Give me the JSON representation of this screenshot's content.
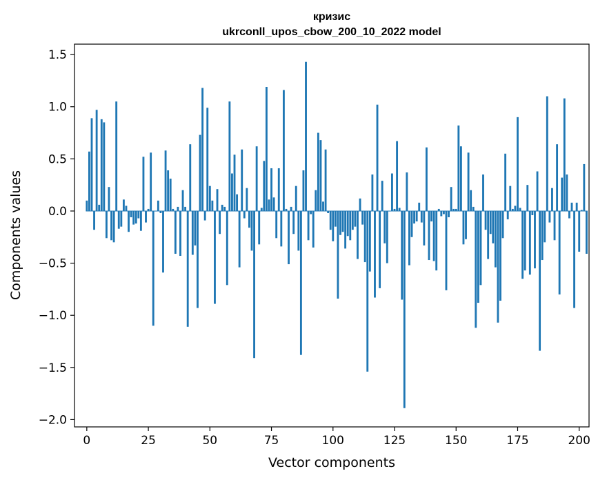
{
  "chart_data": {
    "type": "bar",
    "title": "кризис",
    "subtitle": "ukrconll_upos_cbow_200_10_2022 model",
    "xlabel": "Vector components",
    "ylabel": "Components values",
    "xlim": [
      -5,
      204
    ],
    "ylim": [
      -2.07,
      1.6
    ],
    "xticks": [
      0,
      25,
      50,
      75,
      100,
      125,
      150,
      175,
      200
    ],
    "xtick_labels": [
      "0",
      "25",
      "50",
      "75",
      "100",
      "125",
      "150",
      "175",
      "200"
    ],
    "yticks": [
      1.5,
      1.0,
      0.5,
      0.0,
      -0.5,
      -1.0,
      -1.5,
      -2.0
    ],
    "ytick_labels": [
      "1.5",
      "1.0",
      "0.5",
      "0.0",
      "−0.5",
      "−1.0",
      "−1.5",
      "−2.0"
    ],
    "grid": false,
    "bar_color": "#1f77b4",
    "values": [
      0.1,
      0.57,
      0.89,
      -0.18,
      0.97,
      0.06,
      0.88,
      0.85,
      -0.26,
      0.23,
      -0.28,
      -0.3,
      1.05,
      -0.17,
      -0.15,
      0.11,
      0.05,
      -0.2,
      -0.06,
      -0.13,
      -0.12,
      -0.07,
      -0.19,
      0.52,
      -0.11,
      0.02,
      0.56,
      -1.1,
      0.0,
      0.1,
      -0.02,
      -0.59,
      0.58,
      0.39,
      0.31,
      0.02,
      -0.41,
      0.04,
      -0.43,
      0.2,
      0.04,
      -1.11,
      0.64,
      -0.42,
      -0.33,
      -0.93,
      0.73,
      1.18,
      -0.09,
      0.99,
      0.24,
      0.1,
      -0.89,
      0.21,
      -0.22,
      0.06,
      0.04,
      -0.71,
      1.05,
      0.36,
      0.54,
      0.16,
      -0.54,
      0.59,
      -0.07,
      0.22,
      -0.16,
      -0.38,
      -1.41,
      0.62,
      -0.32,
      0.03,
      0.48,
      1.19,
      0.11,
      0.41,
      0.13,
      -0.26,
      0.41,
      -0.34,
      1.16,
      0.02,
      -0.51,
      0.04,
      -0.22,
      0.24,
      -0.38,
      -1.38,
      0.39,
      1.43,
      -0.28,
      -0.03,
      -0.35,
      0.2,
      0.75,
      0.68,
      0.09,
      0.59,
      -0.02,
      -0.18,
      -0.29,
      -0.15,
      -0.84,
      -0.23,
      -0.2,
      -0.36,
      -0.24,
      -0.28,
      -0.18,
      -0.15,
      -0.46,
      0.12,
      -0.13,
      -0.49,
      -1.54,
      -0.58,
      0.35,
      -0.83,
      1.02,
      -0.74,
      0.29,
      -0.31,
      -0.5,
      0.0,
      0.36,
      0.02,
      0.67,
      0.03,
      -0.85,
      -1.89,
      0.37,
      -0.52,
      -0.25,
      -0.12,
      -0.1,
      0.08,
      -0.11,
      -0.33,
      0.61,
      -0.47,
      -0.1,
      -0.48,
      -0.57,
      0.02,
      -0.05,
      -0.03,
      -0.76,
      -0.06,
      0.23,
      0.02,
      0.02,
      0.82,
      0.62,
      -0.32,
      -0.27,
      0.56,
      0.2,
      0.04,
      -1.12,
      -0.88,
      -0.71,
      0.35,
      -0.18,
      -0.46,
      -0.22,
      -0.31,
      -0.54,
      -1.07,
      -0.86,
      -0.26,
      0.55,
      -0.08,
      0.24,
      0.02,
      0.05,
      0.9,
      0.03,
      -0.65,
      -0.57,
      0.25,
      -0.61,
      -0.04,
      -0.55,
      0.38,
      -1.34,
      -0.47,
      -0.3,
      1.1,
      -0.11,
      0.22,
      -0.28,
      0.64,
      -0.8,
      0.32,
      1.08,
      0.35,
      -0.07,
      0.08,
      -0.93,
      0.08,
      -0.39,
      0.01,
      0.45,
      -0.41
    ]
  }
}
